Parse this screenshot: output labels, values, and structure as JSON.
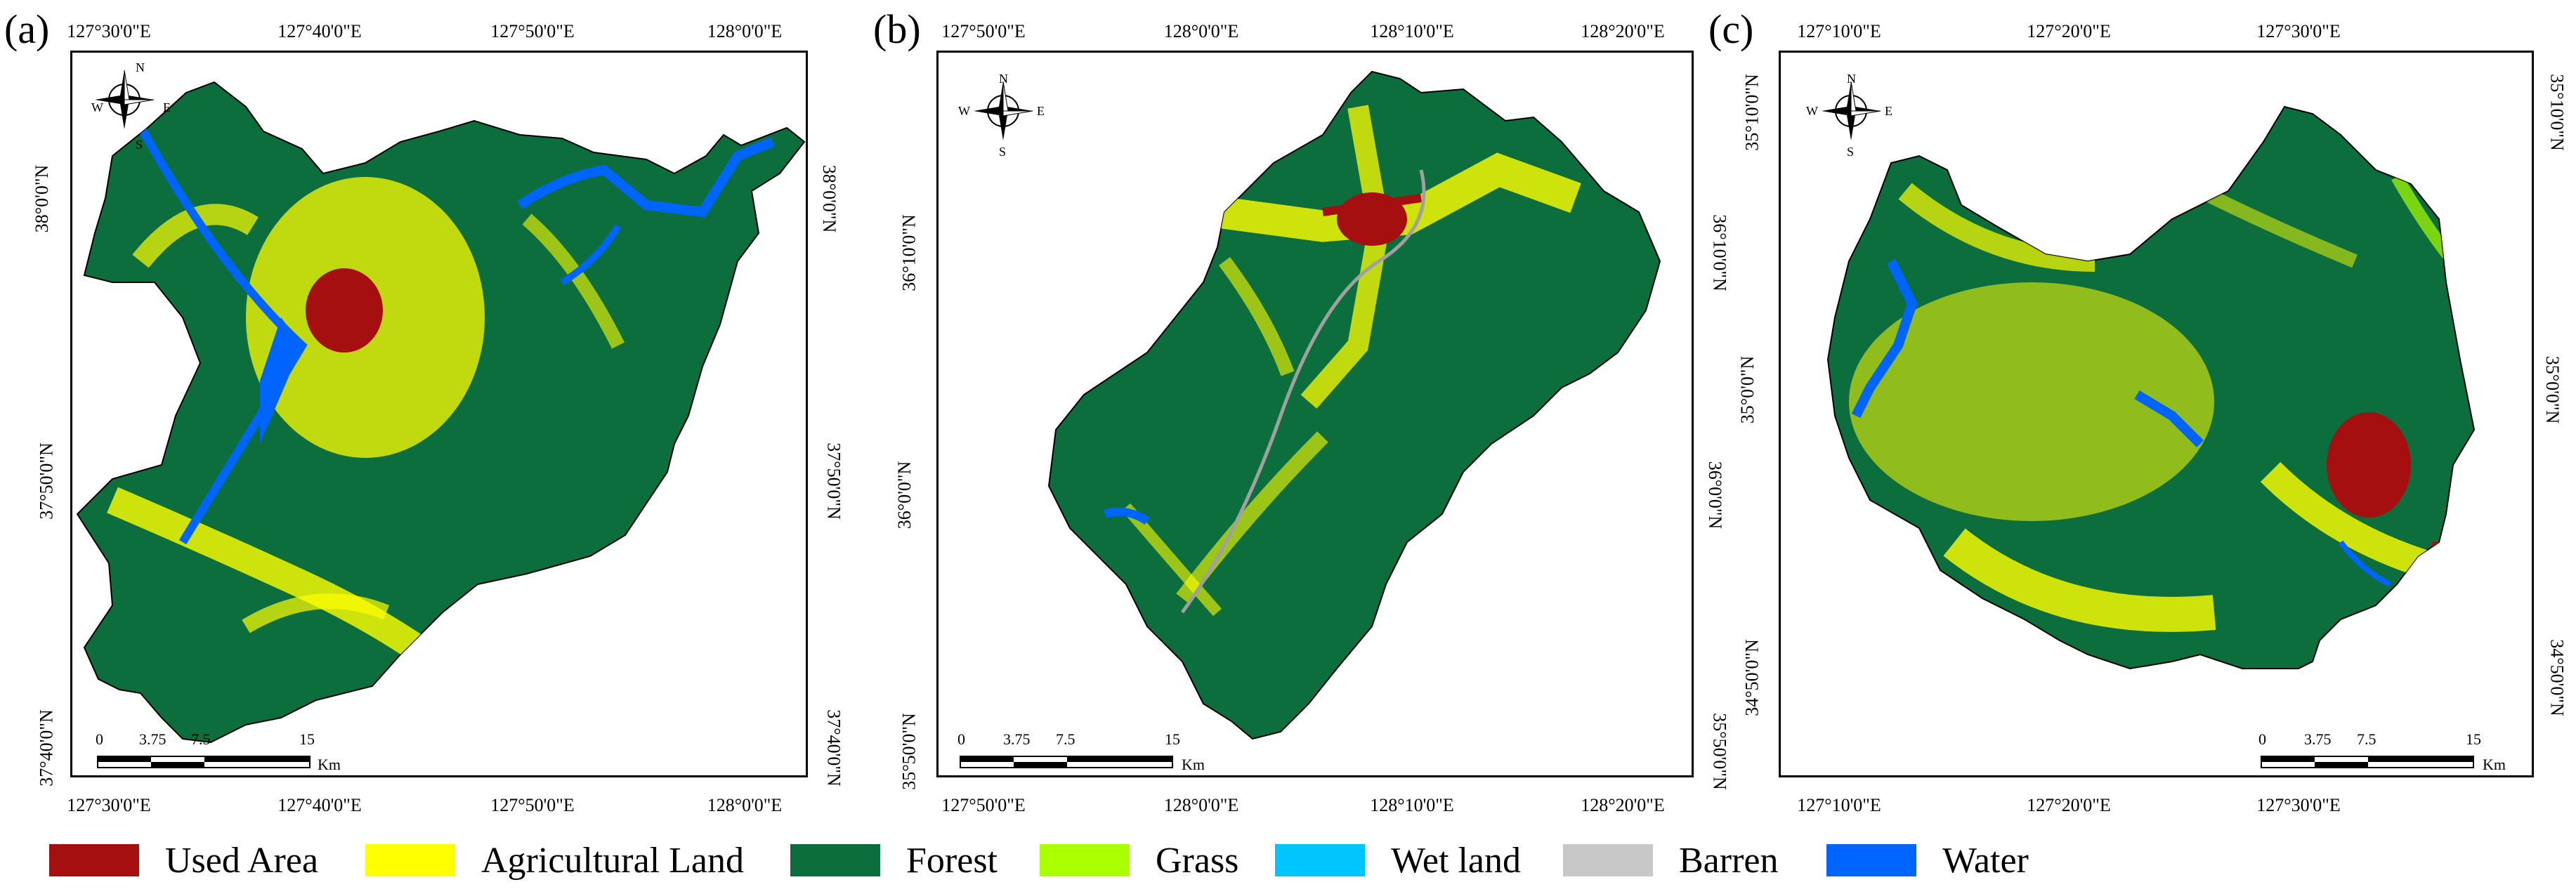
{
  "panels": [
    {
      "id": "a",
      "label": "(a)",
      "top_ticks": [
        "127°30'0\"E",
        "127°40'0\"E",
        "127°50'0\"E",
        "128°0'0\"E"
      ],
      "bottom_ticks": [
        "127°30'0\"E",
        "127°40'0\"E",
        "127°50'0\"E",
        "128°0'0\"E"
      ],
      "left_ticks": [
        "38°0'0\"N",
        "37°50'0\"N",
        "37°40'0\"N"
      ],
      "right_ticks": [
        "38°0'0\"N",
        "37°50'0\"N",
        "37°40'0\"N"
      ],
      "scale": {
        "labels": [
          "0",
          "3.75",
          "7.5",
          "15"
        ],
        "unit": "Km"
      }
    },
    {
      "id": "b",
      "label": "(b)",
      "top_ticks": [
        "127°50'0\"E",
        "128°0'0\"E",
        "128°10'0\"E",
        "128°20'0\"E"
      ],
      "bottom_ticks": [
        "127°50'0\"E",
        "128°0'0\"E",
        "128°10'0\"E",
        "128°20'0\"E"
      ],
      "left_ticks": [
        "36°10'0\"N",
        "36°0'0\"N",
        "35°50'0\"N"
      ],
      "right_ticks": [
        "36°10'0\"N",
        "36°0'0\"N",
        "35°50'0\"N"
      ],
      "scale": {
        "labels": [
          "0",
          "3.75",
          "7.5",
          "15"
        ],
        "unit": "Km"
      }
    },
    {
      "id": "c",
      "label": "(c)",
      "top_ticks": [
        "127°10'0\"E",
        "127°20'0\"E",
        "127°30'0\"E"
      ],
      "bottom_ticks": [
        "127°10'0\"E",
        "127°20'0\"E",
        "127°30'0\"E"
      ],
      "left_ticks": [
        "35°10'0\"N",
        "35°0'0\"N",
        "34°50'0\"N"
      ],
      "right_ticks": [
        "35°10'0\"N",
        "35°0'0\"N",
        "34°50'0\"N"
      ],
      "scale": {
        "labels": [
          "0",
          "3.75",
          "7.5",
          "15"
        ],
        "unit": "Km"
      }
    }
  ],
  "compass": {
    "n": "N",
    "s": "S",
    "e": "E",
    "w": "W"
  },
  "legend": [
    {
      "label": "Used Area",
      "color": "#a50f0f"
    },
    {
      "label": "Agricultural Land",
      "color": "#ffff00"
    },
    {
      "label": "Forest",
      "color": "#0b6e3c"
    },
    {
      "label": "Grass",
      "color": "#aaff00"
    },
    {
      "label": "Wet land",
      "color": "#00c5ff"
    },
    {
      "label": "Barren",
      "color": "#c8c8c8"
    },
    {
      "label": "Water",
      "color": "#0064ff"
    }
  ]
}
